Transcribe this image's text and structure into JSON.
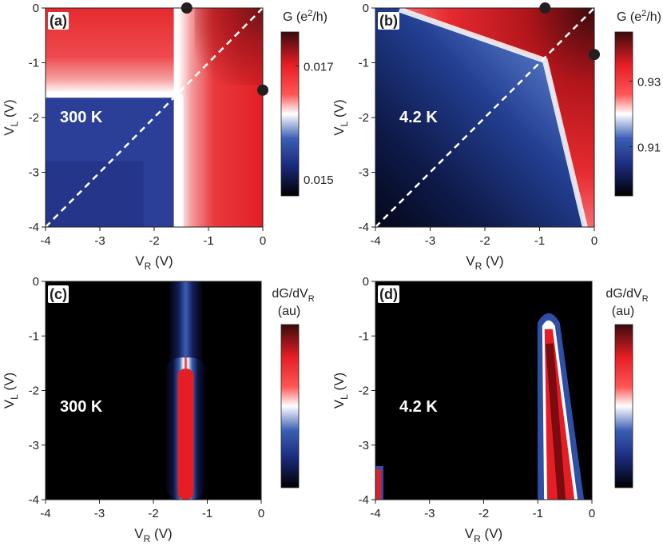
{
  "chart_data": [
    {
      "panel": "(a)",
      "type": "heatmap",
      "temperature": "300 K",
      "xlabel": "V",
      "xlabel_sub": "R",
      "xlabel_unit": " (V)",
      "ylabel": "V",
      "ylabel_sub": "L",
      "ylabel_unit": " (V)",
      "xlim": [
        -4,
        0
      ],
      "ylim": [
        -4,
        0
      ],
      "xticks": [
        "-4",
        "-3",
        "-2",
        "-1",
        "0"
      ],
      "yticks": [
        "0",
        "-1",
        "-2",
        "-3",
        "-4"
      ],
      "colorbar_title": "G (e",
      "colorbar_title_sup": "2",
      "colorbar_title_end": "/h)",
      "colorbar_ticks": [
        "0.017",
        "0.015"
      ],
      "colorbar_tick_values": [
        0.017,
        0.015
      ],
      "colorbar_range": [
        0.0147,
        0.0176
      ],
      "corner": [
        -1.55,
        -1.55
      ],
      "markers": [
        {
          "x": -1.4,
          "y": 0
        },
        {
          "x": 0,
          "y": -1.5
        }
      ],
      "diagonal": true
    },
    {
      "panel": "(b)",
      "type": "heatmap",
      "temperature": "4.2 K",
      "xlabel": "V",
      "xlabel_sub": "R",
      "xlabel_unit": " (V)",
      "ylabel": "V",
      "ylabel_sub": "L",
      "ylabel_unit": " (V)",
      "xlim": [
        -4,
        0
      ],
      "ylim": [
        -4,
        0
      ],
      "xticks": [
        "-4",
        "-3",
        "-2",
        "-1",
        "0"
      ],
      "yticks": [
        "0",
        "-1",
        "-2",
        "-3",
        "-4"
      ],
      "colorbar_title": "G (e",
      "colorbar_title_sup": "2",
      "colorbar_title_end": "/h)",
      "colorbar_ticks": [
        "0.93",
        "0.91"
      ],
      "colorbar_tick_values": [
        0.93,
        0.91
      ],
      "colorbar_range": [
        0.895,
        0.945
      ],
      "corner": [
        -0.9,
        -0.9
      ],
      "markers": [
        {
          "x": -0.9,
          "y": 0
        },
        {
          "x": 0,
          "y": -0.85
        }
      ],
      "diagonal": true
    },
    {
      "panel": "(c)",
      "type": "heatmap",
      "temperature": "300 K",
      "xlabel": "V",
      "xlabel_sub": "R",
      "xlabel_unit": " (V)",
      "ylabel": "V",
      "ylabel_sub": "L",
      "ylabel_unit": " (V)",
      "xlim": [
        -4,
        0
      ],
      "ylim": [
        -4,
        0
      ],
      "xticks": [
        "-4",
        "-3",
        "-2",
        "-1",
        "0"
      ],
      "yticks": [
        "0",
        "-1",
        "-2",
        "-3",
        "-4"
      ],
      "colorbar_title_line1": "dG/dV",
      "colorbar_title_sub": "R",
      "colorbar_title_line2": "(au)",
      "peak_vr": -1.4,
      "peak_vl_top": -1.6
    },
    {
      "panel": "(d)",
      "type": "heatmap",
      "temperature": "4.2 K",
      "xlabel": "V",
      "xlabel_sub": "R",
      "xlabel_unit": " (V)",
      "ylabel": "V",
      "ylabel_sub": "L",
      "ylabel_unit": " (V)",
      "xlim": [
        -4,
        0
      ],
      "ylim": [
        -4,
        0
      ],
      "xticks": [
        "-4",
        "-3",
        "-2",
        "-1",
        "0"
      ],
      "yticks": [
        "0",
        "-1",
        "-2",
        "-3",
        "-4"
      ],
      "colorbar_title_line1": "dG/dV",
      "colorbar_title_sub": "R",
      "colorbar_title_line2": "(au)",
      "peak_vr_top": -0.8,
      "peak_vr_bottom": -0.5,
      "peak_vl_top": -0.7
    }
  ]
}
